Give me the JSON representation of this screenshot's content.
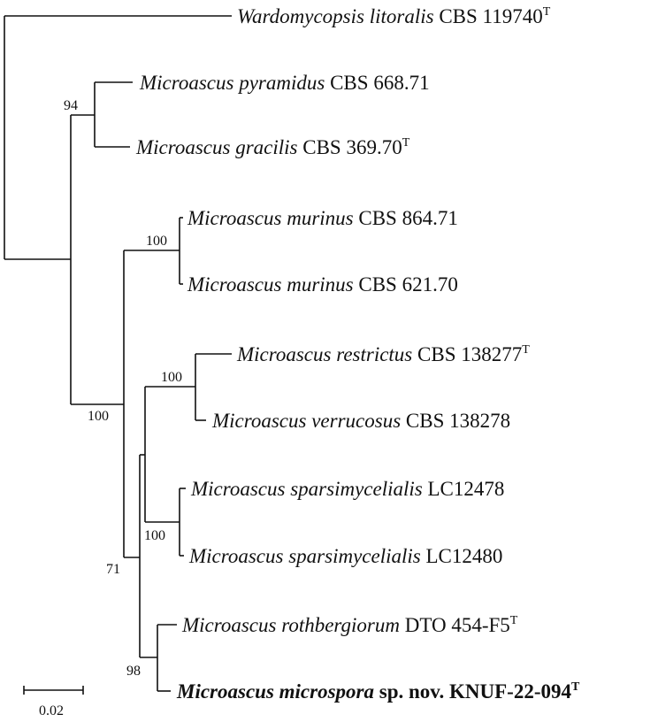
{
  "tree": {
    "taxa": [
      {
        "genus": "Wardomycopsis",
        "species": "litoralis",
        "strain": "CBS 119740",
        "sup": "T",
        "bold": false
      },
      {
        "genus": "Microascus",
        "species": "pyramidus",
        "strain": "CBS 668.71",
        "sup": "",
        "bold": false
      },
      {
        "genus": "Microascus",
        "species": "gracilis",
        "strain": "CBS 369.70",
        "sup": "T",
        "bold": false
      },
      {
        "genus": "Microascus",
        "species": "murinus",
        "strain": "CBS 864.71",
        "sup": "",
        "bold": false
      },
      {
        "genus": "Microascus",
        "species": "murinus",
        "strain": "CBS 621.70",
        "sup": "",
        "bold": false
      },
      {
        "genus": "Microascus",
        "species": "restrictus",
        "strain": "CBS 138277",
        "sup": "T",
        "bold": false
      },
      {
        "genus": "Microascus",
        "species": "verrucosus",
        "strain": "CBS 138278",
        "sup": "",
        "bold": false
      },
      {
        "genus": "Microascus",
        "species": "sparsimycelialis",
        "strain": "LC12478",
        "sup": "",
        "bold": false
      },
      {
        "genus": "Microascus",
        "species": "sparsimycelialis",
        "strain": "LC12480",
        "sup": "",
        "bold": false
      },
      {
        "genus": "Microascus",
        "species": "rothbergiorum",
        "strain": "DTO 454-F5",
        "sup": "T",
        "bold": false
      },
      {
        "genus": "Microascus",
        "species": "microspora",
        "strain": "sp. nov. KNUF-22-094",
        "sup": "T",
        "bold": true
      }
    ],
    "bootstrap": [
      "94",
      "100",
      "100",
      "100",
      "100",
      "71",
      "98"
    ],
    "scale_bar": "0.02"
  }
}
